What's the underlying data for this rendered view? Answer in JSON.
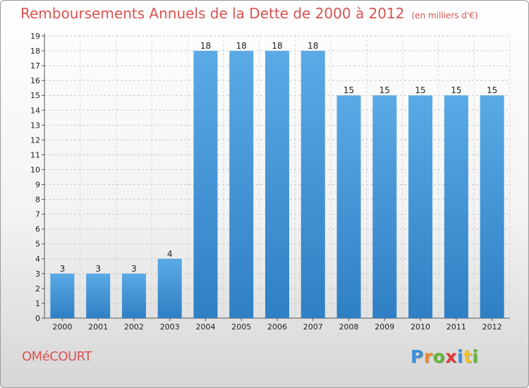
{
  "header": {
    "title": "Remboursements Annuels de la Dette de 2000 à 2012",
    "subtitle": "(en milliers d'€)"
  },
  "commune": "OMéCOURT",
  "logo": {
    "letters": [
      "P",
      "r",
      "o",
      "x",
      "i",
      "t",
      "i"
    ],
    "colors": [
      "#3b8fd6",
      "#f0892a",
      "#66b53a",
      "#e23a3a",
      "#3b8fd6",
      "#f0c22a",
      "#66b53a"
    ]
  },
  "colors": {
    "title": "#d9534f",
    "bar": "#3a8fd6"
  },
  "chart_data": {
    "type": "bar",
    "title": "Remboursements Annuels de la Dette de 2000 à 2012",
    "categories": [
      "2000",
      "2001",
      "2002",
      "2003",
      "2004",
      "2005",
      "2006",
      "2007",
      "2008",
      "2009",
      "2010",
      "2011",
      "2012"
    ],
    "values": [
      3,
      3,
      3,
      4,
      18,
      18,
      18,
      18,
      15,
      15,
      15,
      15,
      15
    ],
    "data_labels": [
      "3",
      "3",
      "3",
      "4",
      "18",
      "18",
      "18",
      "18",
      "15",
      "15",
      "15",
      "15",
      "15"
    ],
    "y_ticks": [
      "0",
      "1",
      "2",
      "3",
      "4",
      "5",
      "6",
      "7",
      "8",
      "9",
      "10",
      "11",
      "12",
      "13",
      "14",
      "15",
      "16",
      "17",
      "18",
      "19"
    ],
    "ylim": [
      0,
      19
    ],
    "grid": true,
    "legend": "none"
  }
}
